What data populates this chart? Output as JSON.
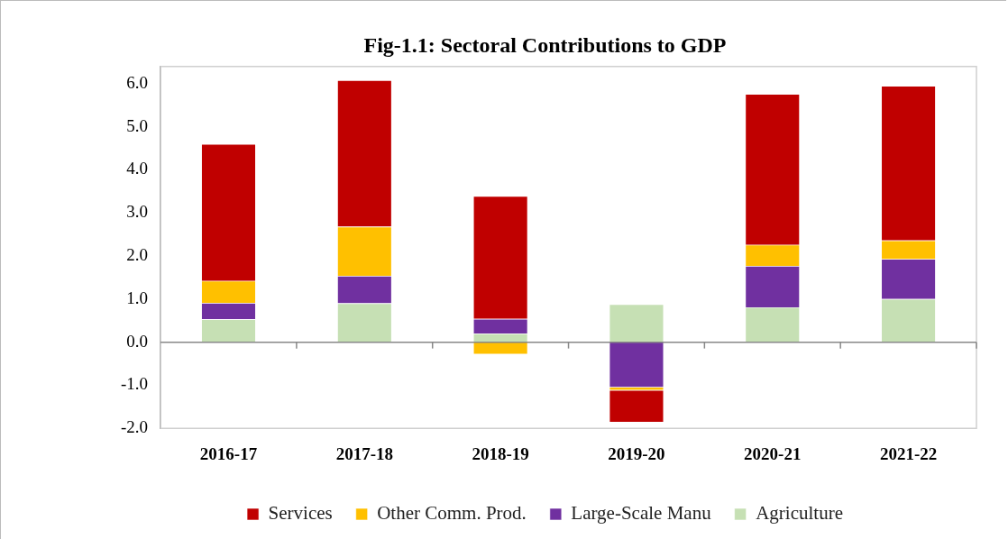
{
  "chart_data": {
    "type": "bar",
    "title": "Fig-1.1: Sectoral Contributions to GDP",
    "categories": [
      "2016-17",
      "2017-18",
      "2018-19",
      "2019-20",
      "2020-21",
      "2021-22"
    ],
    "stacked": true,
    "series": [
      {
        "name": "Agriculture",
        "color": "#c6e0b4",
        "values": [
          0.53,
          0.9,
          0.2,
          0.88,
          0.81,
          1.0
        ]
      },
      {
        "name": "Large-Scale Manu",
        "color": "#7030a0",
        "values": [
          0.38,
          0.64,
          0.34,
          -1.05,
          0.96,
          0.93
        ]
      },
      {
        "name": "Other Comm. Prod.",
        "color": "#ffc000",
        "values": [
          0.51,
          1.14,
          -0.28,
          -0.07,
          0.49,
          0.43
        ]
      },
      {
        "name": "Services",
        "color": "#c00000",
        "values": [
          3.18,
          3.4,
          2.85,
          -0.74,
          3.5,
          3.59
        ]
      }
    ],
    "ylim": [
      -2,
      6.4
    ],
    "yticks": [
      {
        "value": -2,
        "label": "-2.0"
      },
      {
        "value": -1,
        "label": "-1.0"
      },
      {
        "value": 0,
        "label": "0.0"
      },
      {
        "value": 1,
        "label": "1.0"
      },
      {
        "value": 2,
        "label": "2.0"
      },
      {
        "value": 3,
        "label": "3.0"
      },
      {
        "value": 4,
        "label": "4.0"
      },
      {
        "value": 5,
        "label": "5.0"
      },
      {
        "value": 6,
        "label": "6.0"
      }
    ],
    "legend": "bottom"
  }
}
